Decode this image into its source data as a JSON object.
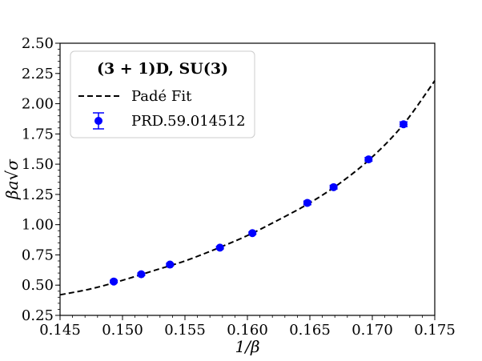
{
  "chart_data": {
    "type": "scatter",
    "xlabel": "1/β",
    "ylabel": "βa√σ",
    "xlim": [
      0.145,
      0.175
    ],
    "ylim": [
      0.25,
      2.5
    ],
    "x_ticks": [
      "0.145",
      "0.150",
      "0.155",
      "0.160",
      "0.165",
      "0.170",
      "0.175"
    ],
    "y_ticks": [
      "0.25",
      "0.50",
      "0.75",
      "1.00",
      "1.25",
      "1.50",
      "1.75",
      "2.00",
      "2.25",
      "2.50"
    ],
    "grid": false,
    "legend": {
      "placement": "top-left",
      "title": "(3 + 1)D, SU(3)",
      "entries": [
        "Padé Fit",
        "PRD.59.014512"
      ]
    },
    "series": [
      {
        "name": "PRD.59.014512",
        "kind": "scatter-errorbar",
        "color": "#0000ff",
        "x": [
          0.1493,
          0.1515,
          0.1538,
          0.1578,
          0.1604,
          0.1648,
          0.1669,
          0.1697,
          0.1725
        ],
        "y": [
          0.53,
          0.59,
          0.67,
          0.81,
          0.93,
          1.18,
          1.31,
          1.54,
          1.83
        ],
        "yerr": [
          0.01,
          0.01,
          0.01,
          0.01,
          0.01,
          0.015,
          0.015,
          0.015,
          0.02
        ]
      },
      {
        "name": "Padé Fit",
        "kind": "line",
        "style": "dashed",
        "color": "#000000",
        "x": [
          0.145,
          0.1475,
          0.15,
          0.1525,
          0.155,
          0.1575,
          0.16,
          0.1625,
          0.165,
          0.1675,
          0.17,
          0.1725,
          0.175
        ],
        "y": [
          0.42,
          0.47,
          0.54,
          0.62,
          0.7,
          0.8,
          0.91,
          1.04,
          1.18,
          1.35,
          1.56,
          1.83,
          2.19
        ]
      }
    ]
  }
}
